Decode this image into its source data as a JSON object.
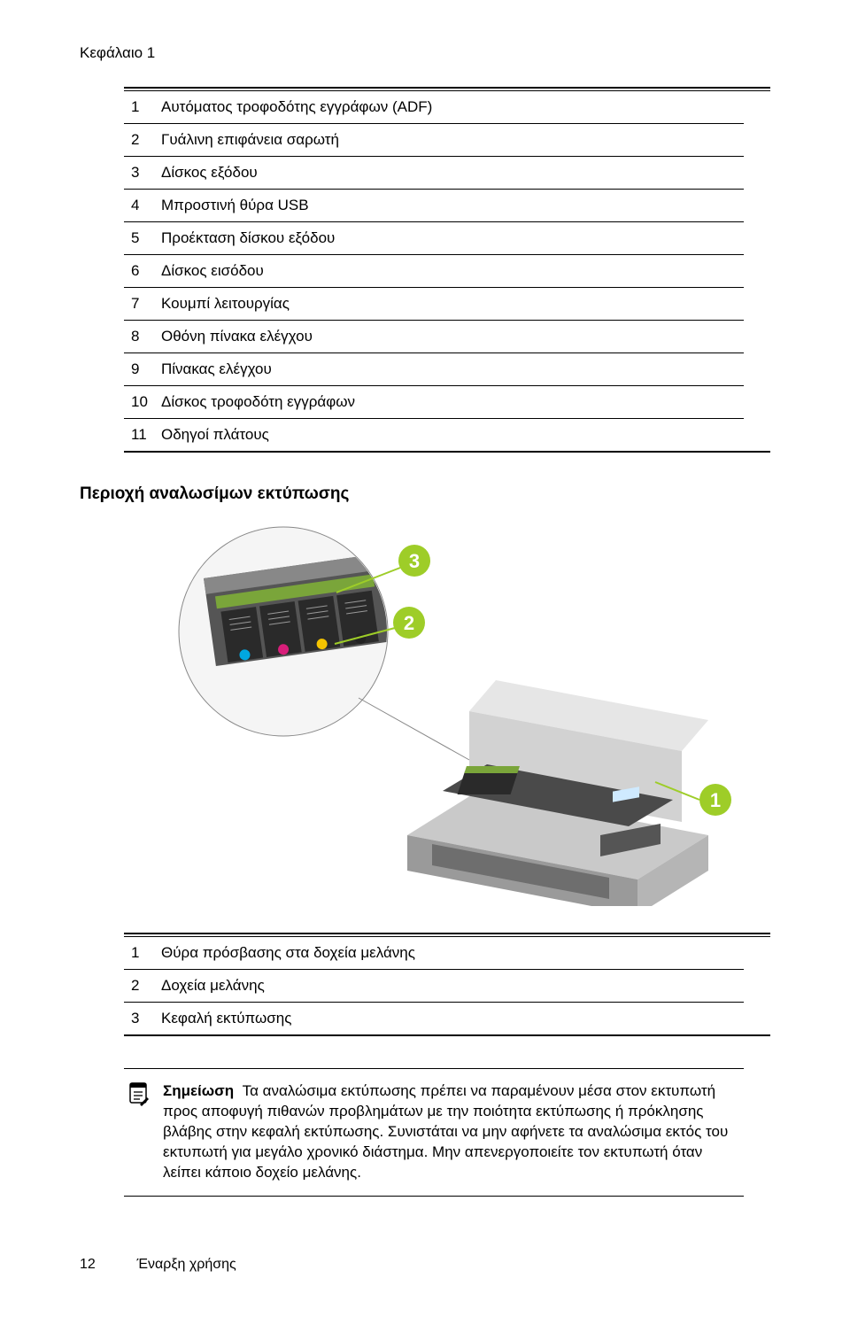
{
  "chapter": "Κεφάλαιο 1",
  "table1": {
    "rows": [
      {
        "n": "1",
        "label": "Αυτόματος τροφοδότης εγγράφων (ADF)"
      },
      {
        "n": "2",
        "label": "Γυάλινη επιφάνεια σαρωτή"
      },
      {
        "n": "3",
        "label": "Δίσκος εξόδου"
      },
      {
        "n": "4",
        "label": "Μπροστινή θύρα USB"
      },
      {
        "n": "5",
        "label": "Προέκταση δίσκου εξόδου"
      },
      {
        "n": "6",
        "label": "Δίσκος εισόδου"
      },
      {
        "n": "7",
        "label": "Κουμπί λειτουργίας"
      },
      {
        "n": "8",
        "label": "Οθόνη πίνακα ελέγχου"
      },
      {
        "n": "9",
        "label": "Πίνακας ελέγχου"
      },
      {
        "n": "10",
        "label": "Δίσκος τροφοδότη εγγράφων"
      },
      {
        "n": "11",
        "label": "Οδηγοί πλάτους"
      }
    ]
  },
  "heading2": "Περιοχή αναλωσίμων εκτύπωσης",
  "diagram": {
    "callouts": [
      {
        "n": "1",
        "fill": "#9ecd28",
        "text": "#ffffff"
      },
      {
        "n": "2",
        "fill": "#9ecd28",
        "text": "#ffffff"
      },
      {
        "n": "3",
        "fill": "#9ecd28",
        "text": "#ffffff"
      }
    ],
    "printer_body": "#d9d9d9",
    "printer_dark": "#8a8a8a",
    "printer_shadow": "#6e6e6e",
    "cartridge_slot": "#3a3a3a",
    "cartridge_colors": [
      "#00a7e1",
      "#d81e7a",
      "#f5c400",
      "#222222"
    ],
    "printhead_latch": "#7aa53a"
  },
  "table2": {
    "rows": [
      {
        "n": "1",
        "label": "Θύρα πρόσβασης στα δοχεία μελάνης"
      },
      {
        "n": "2",
        "label": "Δοχεία μελάνης"
      },
      {
        "n": "3",
        "label": "Κεφαλή εκτύπωσης"
      }
    ]
  },
  "note": {
    "label": "Σημείωση",
    "body": "Τα αναλώσιμα εκτύπωσης πρέπει να παραμένουν μέσα στον εκτυπωτή προς αποφυγή πιθανών προβλημάτων με την ποιότητα εκτύπωσης ή πρόκλησης βλάβης στην κεφαλή εκτύπωσης. Συνιστάται να μην αφήνετε τα αναλώσιμα εκτός του εκτυπωτή για μεγάλο χρονικό διάστημα. Μην απενεργοποιείτε τον εκτυπωτή όταν λείπει κάποιο δοχείο μελάνης."
  },
  "footer": {
    "page": "12",
    "section": "Έναρξη χρήσης"
  }
}
